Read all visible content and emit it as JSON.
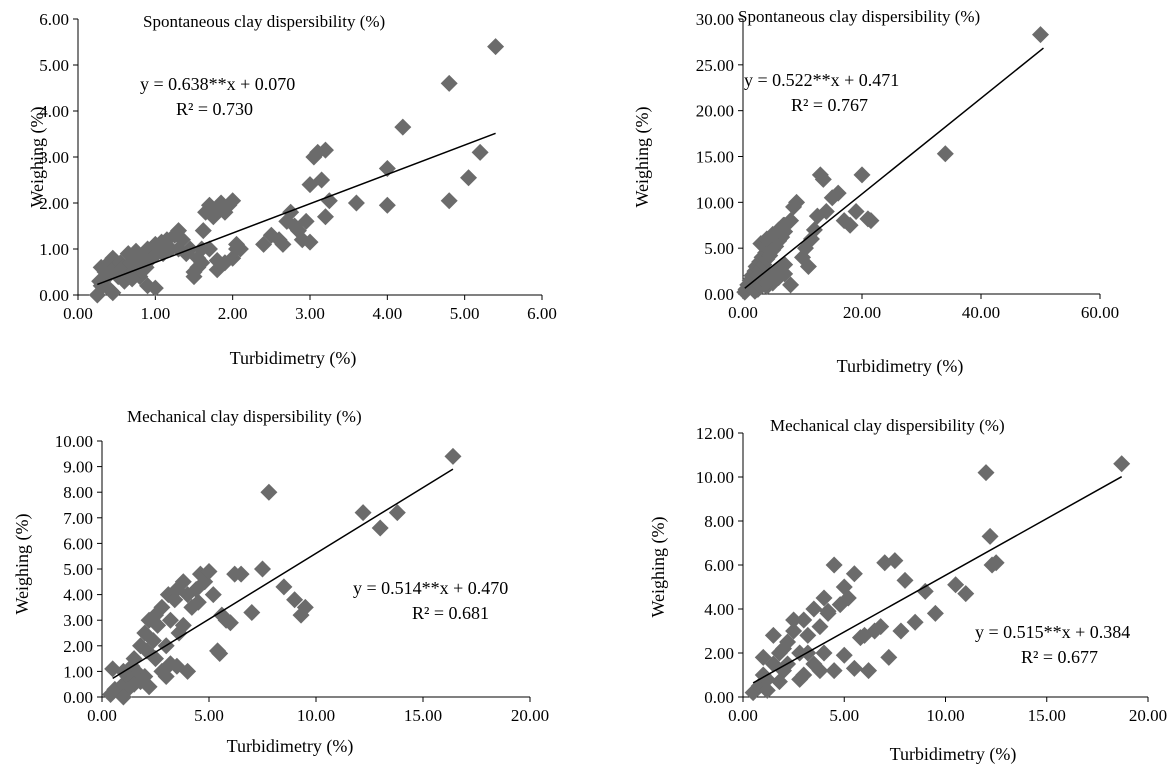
{
  "colors": {
    "marker": "#6b6b6b",
    "trendline": "#000000",
    "axis": "#000000"
  },
  "chart_data": [
    {
      "type": "scatter",
      "title": "Spontaneous clay dispersibility (%)",
      "xlabel": "Turbidimetry (%)",
      "ylabel": "Weighing (%)",
      "xlim": [
        0,
        6
      ],
      "ylim": [
        0,
        6
      ],
      "xticks": [
        "0.00",
        "1.00",
        "2.00",
        "3.00",
        "4.00",
        "5.00",
        "6.00"
      ],
      "yticks": [
        "0.00",
        "1.00",
        "2.00",
        "3.00",
        "4.00",
        "5.00",
        "6.00"
      ],
      "equation": "y = 0.638**x + 0.070",
      "r2": "R² = 0.730",
      "trendline": {
        "slope": 0.638,
        "intercept": 0.07,
        "x_range": [
          0.25,
          5.4
        ]
      },
      "grid": false,
      "marker": "diamond",
      "x": [
        0.25,
        0.28,
        0.3,
        0.32,
        0.35,
        0.38,
        0.4,
        0.42,
        0.45,
        0.48,
        0.5,
        0.52,
        0.55,
        0.58,
        0.6,
        0.62,
        0.65,
        0.68,
        0.7,
        0.72,
        0.75,
        0.78,
        0.8,
        0.82,
        0.85,
        0.88,
        0.9,
        0.92,
        0.95,
        0.98,
        1.0,
        1.02,
        1.05,
        1.08,
        1.1,
        1.12,
        1.15,
        1.2,
        1.25,
        1.3,
        1.35,
        1.4,
        1.45,
        1.5,
        1.55,
        1.6,
        1.65,
        1.7,
        1.75,
        1.8,
        1.85,
        1.9,
        1.95,
        2.0,
        2.05,
        2.1,
        1.5,
        1.55,
        1.6,
        1.62,
        1.7,
        1.8,
        1.9,
        2.0,
        2.05,
        2.4,
        2.5,
        2.6,
        2.65,
        2.7,
        2.75,
        2.8,
        2.85,
        2.9,
        2.95,
        3.0,
        3.05,
        3.1,
        3.15,
        3.2,
        3.25,
        3.0,
        3.2,
        3.6,
        4.0,
        4.2,
        4.0,
        4.8,
        4.8,
        5.05,
        5.2,
        5.4,
        0.3,
        0.45,
        0.7,
        0.9,
        1.0,
        1.3,
        1.8
      ],
      "y": [
        0.0,
        0.3,
        0.6,
        0.2,
        0.5,
        0.4,
        0.7,
        0.1,
        0.8,
        0.6,
        0.5,
        0.4,
        0.7,
        0.6,
        0.3,
        0.5,
        0.9,
        0.7,
        0.5,
        0.8,
        0.95,
        0.6,
        0.4,
        0.8,
        0.7,
        0.6,
        1.0,
        0.9,
        0.8,
        1.0,
        1.1,
        0.9,
        1.0,
        1.15,
        0.9,
        1.1,
        1.2,
        1.0,
        1.3,
        1.4,
        1.2,
        0.9,
        1.0,
        0.4,
        0.6,
        0.7,
        1.8,
        1.95,
        1.7,
        1.9,
        2.0,
        1.8,
        1.95,
        2.05,
        1.1,
        1.0,
        0.5,
        0.8,
        1.0,
        1.4,
        1.0,
        0.55,
        0.7,
        0.8,
        1.0,
        1.1,
        1.3,
        1.2,
        1.1,
        1.6,
        1.8,
        1.5,
        1.4,
        1.2,
        1.6,
        2.4,
        3.0,
        3.1,
        2.5,
        3.15,
        2.05,
        1.15,
        1.7,
        2.0,
        1.95,
        3.65,
        2.75,
        4.6,
        2.05,
        2.55,
        3.1,
        5.4,
        0.2,
        0.05,
        0.35,
        0.2,
        0.15,
        1.0,
        0.75
      ]
    },
    {
      "type": "scatter",
      "title": "Spontaneous clay dispersibility (%)",
      "xlabel": "Turbidimetry (%)",
      "ylabel": "Weighing (%)",
      "xlim": [
        0,
        60
      ],
      "ylim": [
        0,
        30
      ],
      "xticks": [
        "0.00",
        "20.00",
        "40.00",
        "60.00"
      ],
      "yticks": [
        "0.00",
        "5.00",
        "10.00",
        "15.00",
        "20.00",
        "25.00",
        "30.00"
      ],
      "equation": "y = 0.522**x + 0.471",
      "r2": "R² = 0.767",
      "trendline": {
        "slope": 0.522,
        "intercept": 0.471,
        "x_range": [
          0.3,
          50.5
        ]
      },
      "grid": false,
      "marker": "diamond",
      "x": [
        0.3,
        0.5,
        0.8,
        1.0,
        1.2,
        1.5,
        1.8,
        2.0,
        2.2,
        2.5,
        2.8,
        3.0,
        3.2,
        3.5,
        3.8,
        4.0,
        4.2,
        4.5,
        4.8,
        5.0,
        5.2,
        5.5,
        5.8,
        6.0,
        6.2,
        6.5,
        6.8,
        7.0,
        2.5,
        3.0,
        3.5,
        4.0,
        4.5,
        5.0,
        5.5,
        6.0,
        6.5,
        7.0,
        3.0,
        4.0,
        5.0,
        6.0,
        7.0,
        8.0,
        8.5,
        9.0,
        10.0,
        10.5,
        11.0,
        11.5,
        12.0,
        12.5,
        13.0,
        13.5,
        14.0,
        15.0,
        16.0,
        17.0,
        18.0,
        19.0,
        20.0,
        21.0,
        21.5,
        34.0,
        50.0,
        2.0,
        3.0,
        4.0,
        5.0,
        6.0,
        7.0,
        8.0
      ],
      "y": [
        0.2,
        0.5,
        1.0,
        0.8,
        1.5,
        2.0,
        1.2,
        2.5,
        3.0,
        2.0,
        3.5,
        2.8,
        4.0,
        3.2,
        4.5,
        3.8,
        5.0,
        4.2,
        5.5,
        4.8,
        6.0,
        5.2,
        6.5,
        5.8,
        7.0,
        6.2,
        7.5,
        6.8,
        0.5,
        1.0,
        1.5,
        0.8,
        2.0,
        1.2,
        2.5,
        1.8,
        3.0,
        2.2,
        5.5,
        6.0,
        6.5,
        7.0,
        7.5,
        8.0,
        9.5,
        10.0,
        4.0,
        5.0,
        3.0,
        6.0,
        7.0,
        8.5,
        13.0,
        12.5,
        9.0,
        10.5,
        11.0,
        8.0,
        7.5,
        9.0,
        13.0,
        8.2,
        8.0,
        15.3,
        28.3,
        0.3,
        0.8,
        1.2,
        1.8,
        2.5,
        3.2,
        1.0
      ]
    },
    {
      "type": "scatter",
      "title": "Mechanical clay dispersibility (%)",
      "xlabel": "Turbidimetry (%)",
      "ylabel": "Weighing (%)",
      "xlim": [
        0,
        20
      ],
      "ylim": [
        0,
        10
      ],
      "xticks": [
        "0.00",
        "5.00",
        "10.00",
        "15.00",
        "20.00"
      ],
      "yticks": [
        "0.00",
        "1.00",
        "2.00",
        "3.00",
        "4.00",
        "5.00",
        "6.00",
        "7.00",
        "8.00",
        "9.00",
        "10.00"
      ],
      "equation": "y = 0.514**x + 0.470",
      "r2": "R² = 0.681",
      "trendline": {
        "slope": 0.514,
        "intercept": 0.47,
        "x_range": [
          0.5,
          16.4
        ]
      },
      "grid": false,
      "marker": "diamond",
      "x": [
        0.4,
        0.6,
        0.8,
        1.0,
        1.2,
        1.4,
        1.5,
        1.6,
        1.8,
        2.0,
        2.1,
        2.2,
        2.4,
        2.5,
        2.6,
        2.8,
        3.0,
        3.1,
        3.2,
        3.4,
        3.5,
        3.6,
        3.8,
        4.0,
        4.2,
        4.4,
        4.5,
        4.6,
        4.8,
        5.0,
        5.2,
        5.4,
        5.5,
        5.6,
        5.8,
        6.0,
        6.2,
        6.5,
        7.0,
        7.5,
        7.8,
        8.5,
        9.0,
        9.3,
        9.5,
        12.2,
        13.0,
        13.8,
        16.4,
        1.0,
        1.5,
        2.0,
        2.5,
        3.0,
        3.5,
        4.0,
        1.2,
        1.8,
        2.2,
        2.8,
        3.2,
        3.8,
        0.5,
        1.0
      ],
      "y": [
        0.1,
        0.3,
        0.2,
        0.5,
        0.8,
        1.2,
        1.5,
        1.0,
        2.0,
        2.5,
        1.8,
        3.0,
        2.2,
        3.2,
        2.8,
        3.5,
        2.0,
        4.0,
        3.0,
        3.8,
        4.2,
        2.5,
        4.5,
        4.0,
        3.5,
        4.2,
        3.7,
        4.8,
        4.5,
        4.9,
        4.0,
        1.8,
        1.7,
        3.2,
        3.0,
        2.9,
        4.8,
        4.8,
        3.3,
        5.0,
        8.0,
        4.3,
        3.8,
        3.2,
        3.5,
        7.2,
        6.6,
        7.2,
        9.4,
        1.0,
        0.5,
        0.8,
        1.5,
        0.8,
        1.2,
        1.0,
        0.3,
        0.6,
        0.4,
        1.0,
        1.3,
        2.8,
        1.1,
        0.0
      ]
    },
    {
      "type": "scatter",
      "title": "Mechanical clay dispersibility (%)",
      "xlabel": "Turbidimetry (%)",
      "ylabel": "Weighing (%)",
      "xlim": [
        0,
        20
      ],
      "ylim": [
        0,
        12
      ],
      "xticks": [
        "0.00",
        "5.00",
        "10.00",
        "15.00",
        "20.00"
      ],
      "yticks": [
        "0.00",
        "2.00",
        "4.00",
        "6.00",
        "8.00",
        "10.00",
        "12.00"
      ],
      "equation": "y = 0.515**x + 0.384",
      "r2": "R² = 0.677",
      "trendline": {
        "slope": 0.515,
        "intercept": 0.384,
        "x_range": [
          0.5,
          18.7
        ]
      },
      "grid": false,
      "marker": "diamond",
      "x": [
        0.5,
        0.8,
        1.0,
        1.2,
        1.5,
        1.8,
        2.0,
        2.2,
        2.5,
        2.8,
        3.0,
        3.2,
        3.5,
        3.8,
        4.0,
        4.2,
        4.5,
        4.8,
        5.0,
        5.2,
        5.5,
        5.8,
        6.0,
        6.5,
        7.0,
        7.5,
        8.0,
        8.5,
        9.0,
        9.5,
        10.5,
        11.0,
        12.0,
        12.2,
        12.3,
        12.5,
        18.7,
        1.0,
        1.5,
        2.0,
        2.5,
        3.0,
        3.5,
        4.0,
        4.5,
        5.0,
        5.5,
        6.2,
        6.8,
        7.2,
        7.8,
        1.2,
        1.8,
        2.2,
        2.8,
        3.2,
        3.8,
        4.2
      ],
      "y": [
        0.2,
        0.5,
        1.0,
        0.8,
        1.5,
        2.0,
        1.2,
        2.5,
        3.0,
        2.0,
        3.5,
        2.8,
        4.0,
        3.2,
        4.5,
        3.8,
        6.0,
        4.2,
        5.0,
        4.5,
        5.6,
        2.7,
        2.8,
        3.0,
        6.1,
        6.2,
        5.3,
        3.4,
        4.8,
        3.8,
        5.1,
        4.7,
        10.2,
        7.3,
        6.0,
        6.1,
        10.6,
        1.8,
        2.8,
        2.2,
        3.5,
        1.0,
        1.5,
        2.0,
        1.2,
        1.9,
        1.3,
        1.2,
        3.2,
        1.8,
        3.0,
        0.3,
        0.7,
        1.5,
        0.8,
        2.0,
        1.2,
        3.9
      ]
    }
  ]
}
